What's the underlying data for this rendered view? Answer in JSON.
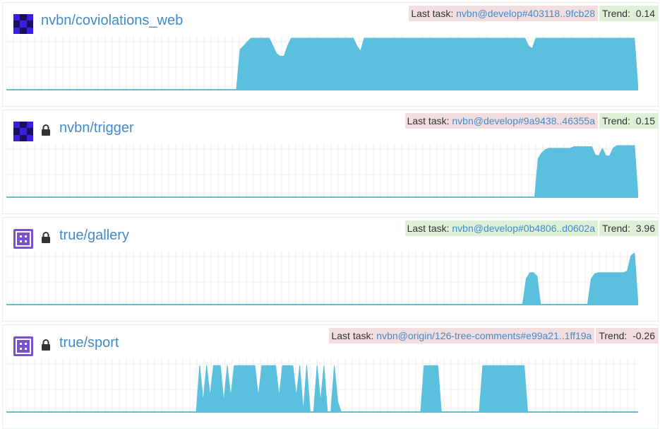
{
  "colors": {
    "accent": "#428bca",
    "bar": "#5bc0de",
    "failure_bg": "#f2dede",
    "success_bg": "#dff0d8",
    "grid": "#ececec"
  },
  "labels": {
    "last_task": "Last task:",
    "trend": "Trend:"
  },
  "projects": [
    {
      "name": "nvbn/coviolations_web",
      "private": false,
      "avatar": "identicon-blue",
      "last_task": "nvbn@develop#403118..9fcb28",
      "last_task_status": "failure",
      "trend": "0.14",
      "trend_status": "success",
      "chart_data": {
        "type": "area",
        "ylim": [
          0,
          1
        ],
        "values": [
          0,
          0,
          0,
          0,
          0,
          0,
          0,
          0,
          0,
          0,
          0,
          0,
          0,
          0,
          0,
          0,
          0,
          0,
          0,
          0,
          0,
          0,
          0,
          0,
          0,
          0,
          0,
          0,
          0,
          0,
          0,
          0,
          0,
          0,
          0,
          0,
          0,
          0,
          0,
          0,
          0,
          0,
          0,
          0,
          0,
          0,
          0,
          0,
          0,
          0,
          0,
          0,
          0,
          0,
          0,
          0,
          0,
          0,
          0,
          0,
          0,
          0,
          0,
          0,
          0.78,
          0.85,
          0.93,
          1,
          1,
          1,
          1,
          1,
          1,
          0.85,
          0.7,
          0.65,
          0.65,
          0.85,
          1,
          1,
          1,
          1,
          1,
          1,
          1,
          1,
          1,
          1,
          1,
          1,
          1,
          1,
          1,
          1,
          1,
          1,
          0.85,
          0.75,
          1,
          1,
          1,
          1,
          1,
          1,
          1,
          1,
          1,
          1,
          1,
          1,
          1,
          1,
          1,
          1,
          1,
          1,
          1,
          1,
          1,
          1,
          1,
          1,
          1,
          1,
          1,
          1,
          1,
          1,
          1,
          1,
          1,
          1,
          1,
          1,
          1,
          1,
          1,
          1,
          1,
          1,
          1,
          1,
          1,
          0.85,
          0.8,
          1,
          1,
          1,
          1,
          1,
          1,
          1,
          1,
          1,
          1,
          1,
          1,
          1,
          1,
          1,
          1,
          1,
          1,
          1,
          1,
          1,
          1,
          1,
          1,
          1,
          1,
          1,
          1,
          0
        ]
      }
    },
    {
      "name": "nvbn/trigger",
      "private": true,
      "avatar": "identicon-blue",
      "last_task": "nvbn@develop#9a9438..46355a",
      "last_task_status": "failure",
      "trend": "0.15",
      "trend_status": "success",
      "chart_data": {
        "type": "area",
        "ylim": [
          0,
          1
        ],
        "values": [
          0,
          0,
          0,
          0,
          0,
          0,
          0,
          0,
          0,
          0,
          0,
          0,
          0,
          0,
          0,
          0,
          0,
          0,
          0,
          0,
          0,
          0,
          0,
          0,
          0,
          0,
          0,
          0,
          0,
          0,
          0,
          0,
          0,
          0,
          0,
          0,
          0,
          0,
          0,
          0,
          0,
          0,
          0,
          0,
          0,
          0,
          0,
          0,
          0,
          0,
          0,
          0,
          0,
          0,
          0,
          0,
          0,
          0,
          0,
          0,
          0,
          0,
          0,
          0,
          0,
          0,
          0,
          0,
          0,
          0,
          0,
          0,
          0,
          0,
          0,
          0,
          0,
          0,
          0,
          0,
          0,
          0,
          0,
          0,
          0,
          0,
          0,
          0,
          0,
          0,
          0,
          0,
          0,
          0,
          0,
          0,
          0,
          0,
          0,
          0,
          0,
          0,
          0,
          0,
          0,
          0,
          0,
          0,
          0,
          0,
          0,
          0,
          0,
          0,
          0,
          0,
          0,
          0,
          0,
          0,
          0,
          0,
          0,
          0,
          0,
          0,
          0,
          0,
          0,
          0,
          0,
          0,
          0,
          0,
          0,
          0,
          0,
          0,
          0,
          0,
          0,
          0,
          0,
          0,
          0,
          0,
          0,
          0,
          0,
          0.75,
          0.86,
          0.92,
          0.95,
          0.95,
          0.95,
          0.95,
          0.95,
          0.95,
          0.95,
          0.98,
          0.98,
          0.98,
          0.98,
          0.98,
          0.98,
          0.82,
          0.8,
          0.95,
          0.8,
          0.8,
          0.95,
          1,
          1,
          1,
          1,
          1,
          1,
          0
        ]
      }
    },
    {
      "name": "true/gallery",
      "private": true,
      "avatar": "identicon-purple",
      "last_task": "nvbn@develop#0b4806..d0602a",
      "last_task_status": "success",
      "trend": "3.96",
      "trend_status": "success",
      "chart_data": {
        "type": "area",
        "ylim": [
          0,
          1
        ],
        "values": [
          0,
          0,
          0,
          0,
          0,
          0,
          0,
          0,
          0,
          0,
          0,
          0,
          0,
          0,
          0,
          0,
          0,
          0,
          0,
          0,
          0,
          0,
          0,
          0,
          0,
          0,
          0,
          0,
          0,
          0,
          0,
          0,
          0,
          0,
          0,
          0,
          0,
          0,
          0,
          0,
          0,
          0,
          0,
          0,
          0,
          0,
          0,
          0,
          0,
          0,
          0,
          0,
          0,
          0,
          0,
          0,
          0,
          0,
          0,
          0,
          0,
          0,
          0,
          0,
          0,
          0,
          0,
          0,
          0,
          0,
          0,
          0,
          0,
          0,
          0,
          0,
          0,
          0,
          0,
          0,
          0,
          0,
          0,
          0,
          0,
          0,
          0,
          0,
          0,
          0,
          0,
          0,
          0,
          0,
          0,
          0,
          0,
          0,
          0,
          0,
          0,
          0,
          0,
          0,
          0,
          0,
          0,
          0,
          0,
          0,
          0,
          0,
          0,
          0,
          0,
          0,
          0,
          0,
          0,
          0,
          0,
          0,
          0,
          0,
          0,
          0,
          0,
          0,
          0,
          0,
          0,
          0,
          0,
          0,
          0,
          0,
          0,
          0,
          0,
          0,
          0,
          0,
          0,
          0,
          0.5,
          0.62,
          0.62,
          0.55,
          0,
          0,
          0,
          0,
          0,
          0,
          0,
          0,
          0,
          0,
          0,
          0,
          0,
          0,
          0.5,
          0.6,
          0.62,
          0.62,
          0.62,
          0.62,
          0.62,
          0.62,
          0.62,
          0.62,
          0.65,
          0.95,
          1,
          0
        ]
      }
    },
    {
      "name": "true/sport",
      "private": true,
      "avatar": "identicon-purple",
      "last_task": "nvbn@origin/126-tree-comments#e99a21..1ff19a",
      "last_task_status": "failure",
      "trend": "-0.26",
      "trend_status": "failure",
      "chart_data": {
        "type": "area",
        "ylim": [
          0,
          1
        ],
        "values": [
          0,
          0,
          0,
          0,
          0,
          0,
          0,
          0,
          0,
          0,
          0,
          0,
          0,
          0,
          0,
          0,
          0,
          0,
          0,
          0,
          0,
          0,
          0,
          0,
          0,
          0,
          0,
          0,
          0,
          0,
          0,
          0,
          0,
          0,
          0,
          0,
          0,
          0,
          0,
          0,
          0,
          0,
          0,
          0,
          0,
          0,
          0,
          0,
          0,
          0,
          0,
          0,
          0,
          0,
          0,
          0,
          0.9,
          0.2,
          0.9,
          0.3,
          0.9,
          0.9,
          0.9,
          0.2,
          0.9,
          0.3,
          0.9,
          0.9,
          0.9,
          0.9,
          0.9,
          0.9,
          0.9,
          0.3,
          0.9,
          0.9,
          0.9,
          0.9,
          0.9,
          0.3,
          0.9,
          0.9,
          0.9,
          0.9,
          0.3,
          0.9,
          0,
          0.9,
          0,
          0,
          0.9,
          0.2,
          0.9,
          0,
          0,
          0.9,
          0.2,
          0,
          0,
          0,
          0,
          0,
          0,
          0,
          0,
          0,
          0,
          0,
          0,
          0,
          0,
          0,
          0,
          0,
          0,
          0,
          0,
          0,
          0,
          0,
          0,
          0.9,
          0.9,
          0.9,
          0.9,
          0.9,
          0,
          0,
          0,
          0,
          0,
          0,
          0,
          0,
          0,
          0,
          0,
          0,
          0.9,
          0.9,
          0.9,
          0.9,
          0.9,
          0.9,
          0.9,
          0.9,
          0.9,
          0.9,
          0.9,
          0.9,
          0.9,
          0,
          0,
          0,
          0,
          0,
          0,
          0,
          0,
          0,
          0,
          0,
          0,
          0,
          0,
          0,
          0,
          0,
          0,
          0,
          0,
          0,
          0,
          0,
          0,
          0,
          0,
          0,
          0,
          0,
          0,
          0,
          0,
          0
        ]
      }
    }
  ]
}
